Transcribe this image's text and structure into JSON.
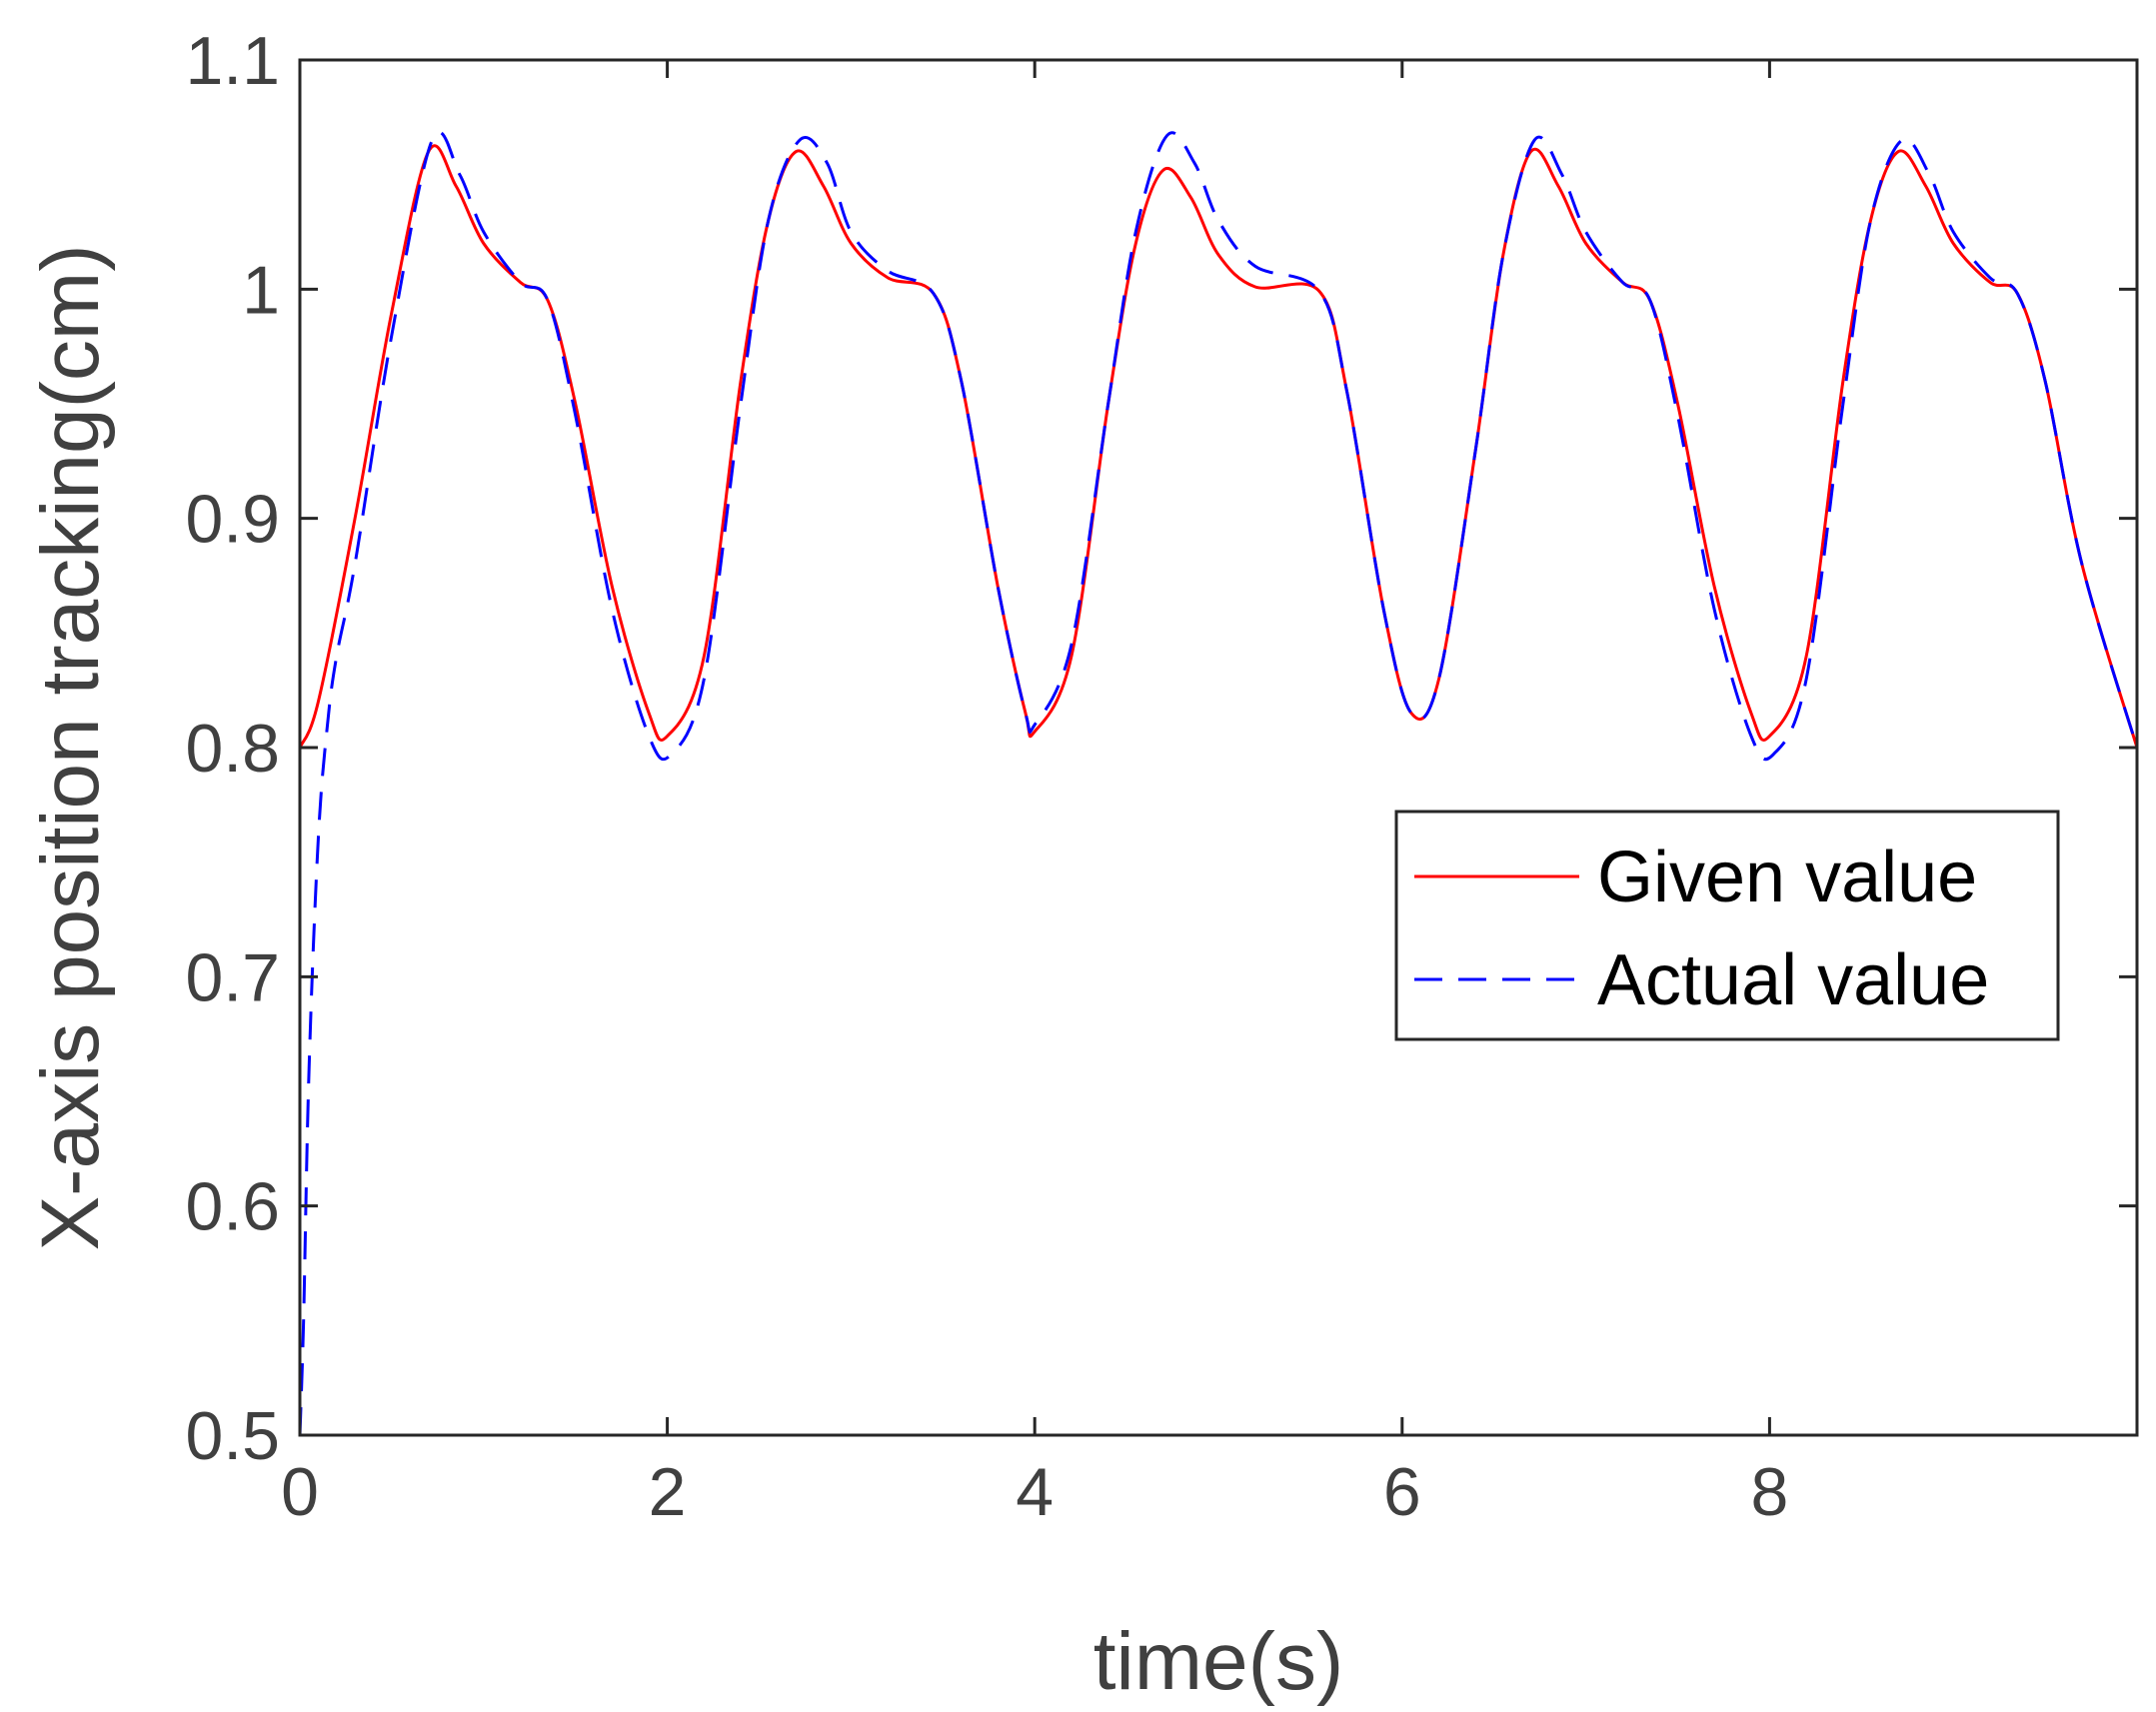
{
  "chart_data": {
    "type": "line",
    "title": "",
    "xlabel": "time(s)",
    "ylabel": "X-axis position tracking(cm)",
    "xlim": [
      0,
      10
    ],
    "ylim": [
      0.5,
      1.1
    ],
    "xticks": [
      0,
      2,
      4,
      6,
      8
    ],
    "xtick_labels": [
      "0",
      "2",
      "4",
      "6",
      "8"
    ],
    "yticks": [
      0.5,
      0.6,
      0.7,
      0.8,
      0.9,
      1.0,
      1.1
    ],
    "ytick_labels": [
      "0.5",
      "0.6",
      "0.7",
      "0.8",
      "0.9",
      "1",
      "1.1"
    ],
    "grid": false,
    "legend_position": "right",
    "series": [
      {
        "name": "Given value",
        "color": "#ff0000",
        "style": "solid",
        "x": [
          0,
          0.1,
          0.3,
          0.5,
          0.7,
          0.85,
          1.0,
          1.2,
          1.35,
          1.5,
          1.7,
          1.9,
          2.0,
          2.2,
          2.4,
          2.55,
          2.7,
          2.85,
          3.0,
          3.2,
          3.45,
          3.6,
          3.8,
          3.95,
          4.0,
          4.2,
          4.4,
          4.55,
          4.7,
          4.85,
          5.0,
          5.2,
          5.55,
          5.7,
          5.9,
          6.05,
          6.2,
          6.4,
          6.55,
          6.7,
          6.85,
          7.0,
          7.2,
          7.35,
          7.5,
          7.7,
          7.9,
          8.0,
          8.2,
          8.4,
          8.55,
          8.7,
          8.85,
          9.0,
          9.2,
          9.35,
          9.5,
          9.7,
          10.0
        ],
        "y": [
          0.8,
          0.82,
          0.9,
          0.99,
          1.06,
          1.045,
          1.02,
          1.003,
          0.995,
          0.95,
          0.87,
          0.815,
          0.805,
          0.84,
          0.96,
          1.03,
          1.06,
          1.045,
          1.02,
          1.005,
          0.998,
          0.96,
          0.87,
          0.815,
          0.807,
          0.84,
          0.95,
          1.02,
          1.052,
          1.04,
          1.015,
          1.001,
          0.999,
          0.955,
          0.86,
          0.815,
          0.83,
          0.93,
          1.015,
          1.06,
          1.045,
          1.02,
          1.003,
          0.995,
          0.95,
          0.87,
          0.815,
          0.805,
          0.84,
          0.96,
          1.03,
          1.06,
          1.045,
          1.02,
          1.003,
          0.998,
          0.96,
          0.88,
          0.8
        ]
      },
      {
        "name": "Actual value",
        "color": "#0000ff",
        "style": "dashed",
        "x": [
          0,
          0.02,
          0.05,
          0.1,
          0.15,
          0.2,
          0.3,
          0.5,
          0.72,
          0.87,
          1.0,
          1.2,
          1.35,
          1.5,
          1.7,
          1.9,
          2.02,
          2.2,
          2.4,
          2.55,
          2.72,
          2.87,
          3.0,
          3.2,
          3.45,
          3.6,
          3.8,
          3.95,
          4.0,
          4.2,
          4.4,
          4.55,
          4.72,
          4.87,
          5.0,
          5.2,
          5.55,
          5.7,
          5.9,
          6.05,
          6.2,
          6.4,
          6.55,
          6.72,
          6.87,
          7.0,
          7.2,
          7.35,
          7.5,
          7.7,
          7.9,
          8.02,
          8.2,
          8.4,
          8.55,
          8.72,
          8.87,
          9.0,
          9.2,
          9.35,
          9.5,
          9.7,
          10.0
        ],
        "y": [
          0.5,
          0.55,
          0.66,
          0.76,
          0.81,
          0.84,
          0.88,
          0.98,
          1.065,
          1.05,
          1.025,
          1.003,
          0.995,
          0.945,
          0.86,
          0.805,
          0.797,
          0.83,
          0.95,
          1.03,
          1.065,
          1.055,
          1.025,
          1.008,
          0.998,
          0.96,
          0.87,
          0.815,
          0.81,
          0.845,
          0.95,
          1.025,
          1.067,
          1.055,
          1.03,
          1.01,
          0.999,
          0.955,
          0.86,
          0.815,
          0.83,
          0.93,
          1.015,
          1.065,
          1.05,
          1.025,
          1.003,
          0.995,
          0.945,
          0.86,
          0.805,
          0.797,
          0.83,
          0.95,
          1.03,
          1.065,
          1.05,
          1.025,
          1.005,
          0.998,
          0.96,
          0.88,
          0.8
        ]
      }
    ]
  }
}
